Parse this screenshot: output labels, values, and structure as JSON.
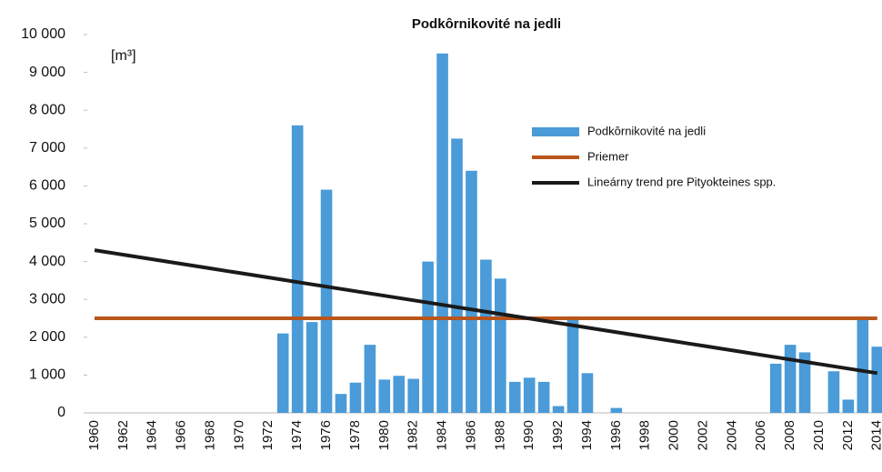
{
  "chart_data": {
    "type": "bar",
    "title": "Podkôrnikovité na jedli",
    "y_label": "[m³]",
    "categories": [
      "1960",
      null,
      "1962",
      null,
      "1964",
      null,
      "1966",
      null,
      "1968",
      null,
      "1970",
      null,
      "1972",
      null,
      "1974",
      null,
      "1976",
      null,
      "1978",
      null,
      "1980",
      null,
      "1982",
      null,
      "1984",
      null,
      "1986",
      null,
      "1988",
      null,
      "1990",
      null,
      "1992",
      null,
      "1994",
      null,
      "1996",
      null,
      "1998",
      null,
      "2000",
      null,
      "2002",
      null,
      "2004",
      null,
      "2006",
      null,
      "2008",
      null,
      "2010",
      null,
      "2012",
      null,
      "2014"
    ],
    "series": [
      {
        "name": "Podkôrnikovité na jedli",
        "color": "#4a9bd8",
        "type": "bar",
        "values": [
          0,
          0,
          0,
          0,
          0,
          0,
          0,
          0,
          0,
          0,
          0,
          0,
          0,
          2100,
          7600,
          2400,
          5900,
          500,
          800,
          1800,
          880,
          980,
          900,
          4000,
          9500,
          7250,
          6400,
          4050,
          3550,
          820,
          930,
          820,
          180,
          2550,
          1050,
          0,
          130,
          0,
          0,
          0,
          0,
          0,
          0,
          0,
          0,
          0,
          0,
          1300,
          1800,
          1600,
          0,
          1100,
          350,
          2550,
          1750
        ]
      },
      {
        "name": "Priemer",
        "color": "#b8561c",
        "type": "line",
        "values": [
          2500,
          2500,
          2500,
          2500,
          2500,
          2500,
          2500,
          2500,
          2500,
          2500,
          2500,
          2500,
          2500,
          2500,
          2500,
          2500,
          2500,
          2500,
          2500,
          2500,
          2500,
          2500,
          2500,
          2500,
          2500,
          2500,
          2500,
          2500,
          2500,
          2500,
          2500,
          2500,
          2500,
          2500,
          2500,
          2500,
          2500,
          2500,
          2500,
          2500,
          2500,
          2500,
          2500,
          2500,
          2500,
          2500,
          2500,
          2500,
          2500,
          2500,
          2500,
          2500,
          2500,
          2500,
          2500
        ]
      },
      {
        "name": "Lineárny trend pre Pityokteines spp.",
        "color": "#1a1a1a",
        "type": "line",
        "values": [
          4300,
          4240,
          4180,
          4119,
          4059,
          3999,
          3939,
          3879,
          3819,
          3758,
          3698,
          3638,
          3578,
          3518,
          3457,
          3397,
          3337,
          3277,
          3217,
          3156,
          3096,
          3036,
          2976,
          2916,
          2856,
          2795,
          2735,
          2675,
          2615,
          2555,
          2494,
          2434,
          2374,
          2314,
          2254,
          2194,
          2133,
          2073,
          2013,
          1953,
          1893,
          1832,
          1772,
          1712,
          1652,
          1592,
          1531,
          1471,
          1411,
          1351,
          1291,
          1231,
          1170,
          1110,
          1050
        ]
      }
    ],
    "ylim": [
      0,
      10000
    ],
    "yticks": [
      0,
      {
        "value": 1000,
        "label": "1 000"
      },
      {
        "value": 2000,
        "label": "2 000"
      },
      {
        "value": 3000,
        "label": "3 000"
      },
      {
        "value": 4000,
        "label": "4 000"
      },
      {
        "value": 5000,
        "label": "5 000"
      },
      {
        "value": 6000,
        "label": "6 000"
      },
      {
        "value": 7000,
        "label": "7 000"
      },
      {
        "value": 8000,
        "label": "8 000"
      },
      {
        "value": 9000,
        "label": "9 000"
      },
      {
        "value": 10000,
        "label": "10 000"
      }
    ],
    "grid": false
  }
}
